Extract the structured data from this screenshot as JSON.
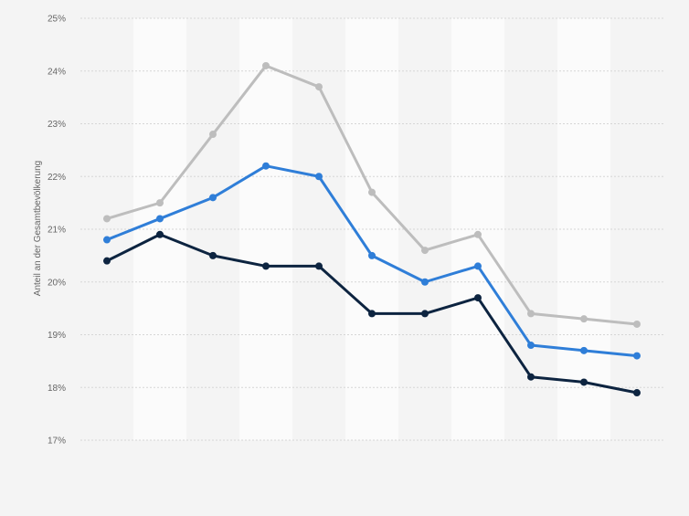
{
  "chart_data": {
    "type": "line",
    "title": "",
    "xlabel": "",
    "ylabel": "Anteil an der Gesamtbevölkerung",
    "ylim": [
      17,
      25
    ],
    "yticks": [
      "17%",
      "18%",
      "19%",
      "20%",
      "21%",
      "22%",
      "23%",
      "24%",
      "25%"
    ],
    "x": [
      1,
      2,
      3,
      4,
      5,
      6,
      7,
      8,
      9,
      10,
      11
    ],
    "grid": true,
    "legend": "none",
    "series": [
      {
        "name": "",
        "color": "#bdbdbd",
        "values": [
          21.2,
          21.5,
          22.8,
          24.1,
          23.7,
          21.7,
          20.6,
          20.9,
          19.4,
          19.3,
          19.2
        ]
      },
      {
        "name": "",
        "color": "#2f7ed8",
        "values": [
          20.8,
          21.2,
          21.6,
          22.2,
          22.0,
          20.5,
          20.0,
          20.3,
          18.8,
          18.7,
          18.6
        ]
      },
      {
        "name": "",
        "color": "#0d2440",
        "values": [
          20.4,
          20.9,
          20.5,
          20.3,
          20.3,
          19.4,
          19.4,
          19.7,
          18.2,
          18.1,
          17.9
        ]
      }
    ]
  }
}
